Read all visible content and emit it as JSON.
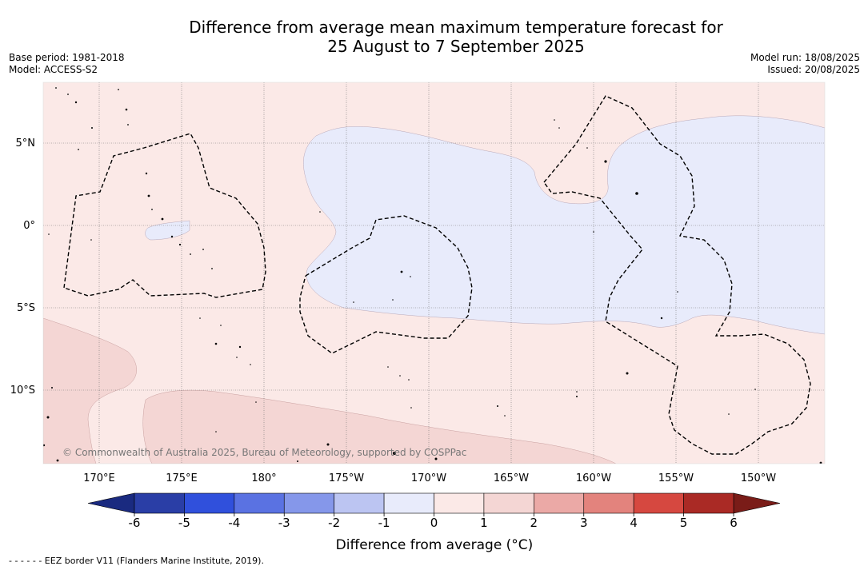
{
  "title_line1": "Difference from average mean maximum temperature forecast for",
  "title_line2": "25 August to 7 September 2025",
  "base_period": "Base period: 1981-2018",
  "model": "Model: ACCESS-S2",
  "model_run": "Model run: 18/08/2025",
  "issued": "Issued: 20/08/2025",
  "map": {
    "lat_labels": [
      "5°N",
      "0°",
      "5°S",
      "10°S"
    ],
    "lon_labels": [
      "170°E",
      "175°E",
      "180°",
      "175°W",
      "170°W",
      "165°W",
      "160°W",
      "155°W",
      "150°W"
    ],
    "copyright": "© Commonwealth of Australia 2025, Bureau of Meteorology, supported by COSPPac"
  },
  "colorbar": {
    "ticks": [
      "-6",
      "-5",
      "-4",
      "-3",
      "-2",
      "-1",
      "0",
      "1",
      "2",
      "3",
      "4",
      "5",
      "6"
    ],
    "colors": [
      "#2a3ea6",
      "#3050dc",
      "#5a72e2",
      "#8597ea",
      "#bcc5f2",
      "#e8ebfb",
      "#fbe9e7",
      "#f4d6d4",
      "#eba9a6",
      "#e3837d",
      "#d64840",
      "#aa2a25"
    ],
    "extend_low_color": "#1a2a80",
    "extend_high_color": "#7a1c18",
    "label": "Difference from average (°C)"
  },
  "legend_note": "- -  - -  - -  EEZ border V11 (Flanders Marine Institute, 2019)."
}
